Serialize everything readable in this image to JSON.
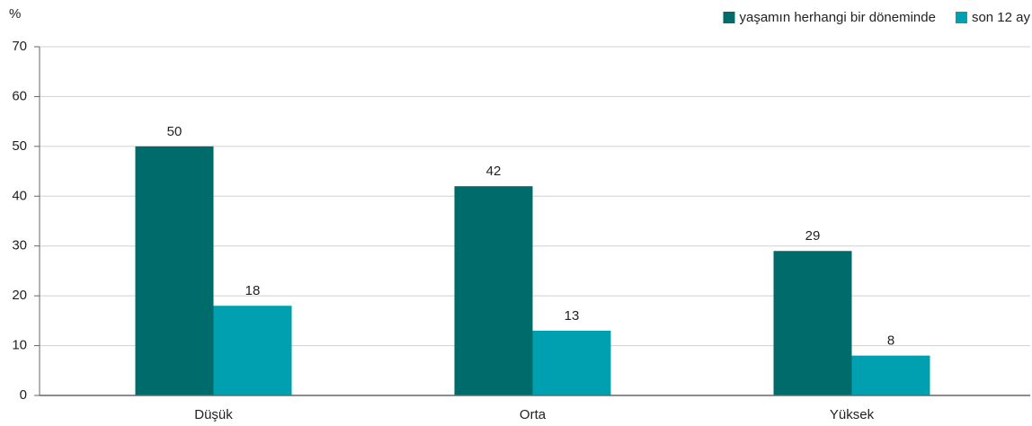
{
  "chart_data": {
    "type": "bar",
    "y_label": "%",
    "categories": [
      "Düşük",
      "Orta",
      "Yüksek"
    ],
    "series": [
      {
        "name": "yaşamın herhangi bir döneminde",
        "color": "#006b6b",
        "values": [
          50,
          42,
          29
        ]
      },
      {
        "name": "son 12 ay",
        "color": "#00a0b0",
        "values": [
          18,
          13,
          8
        ]
      }
    ],
    "ylim": [
      0,
      70
    ],
    "yticks": [
      0,
      10,
      20,
      30,
      40,
      50,
      60,
      70
    ],
    "grid": true,
    "legend": "top-right"
  }
}
